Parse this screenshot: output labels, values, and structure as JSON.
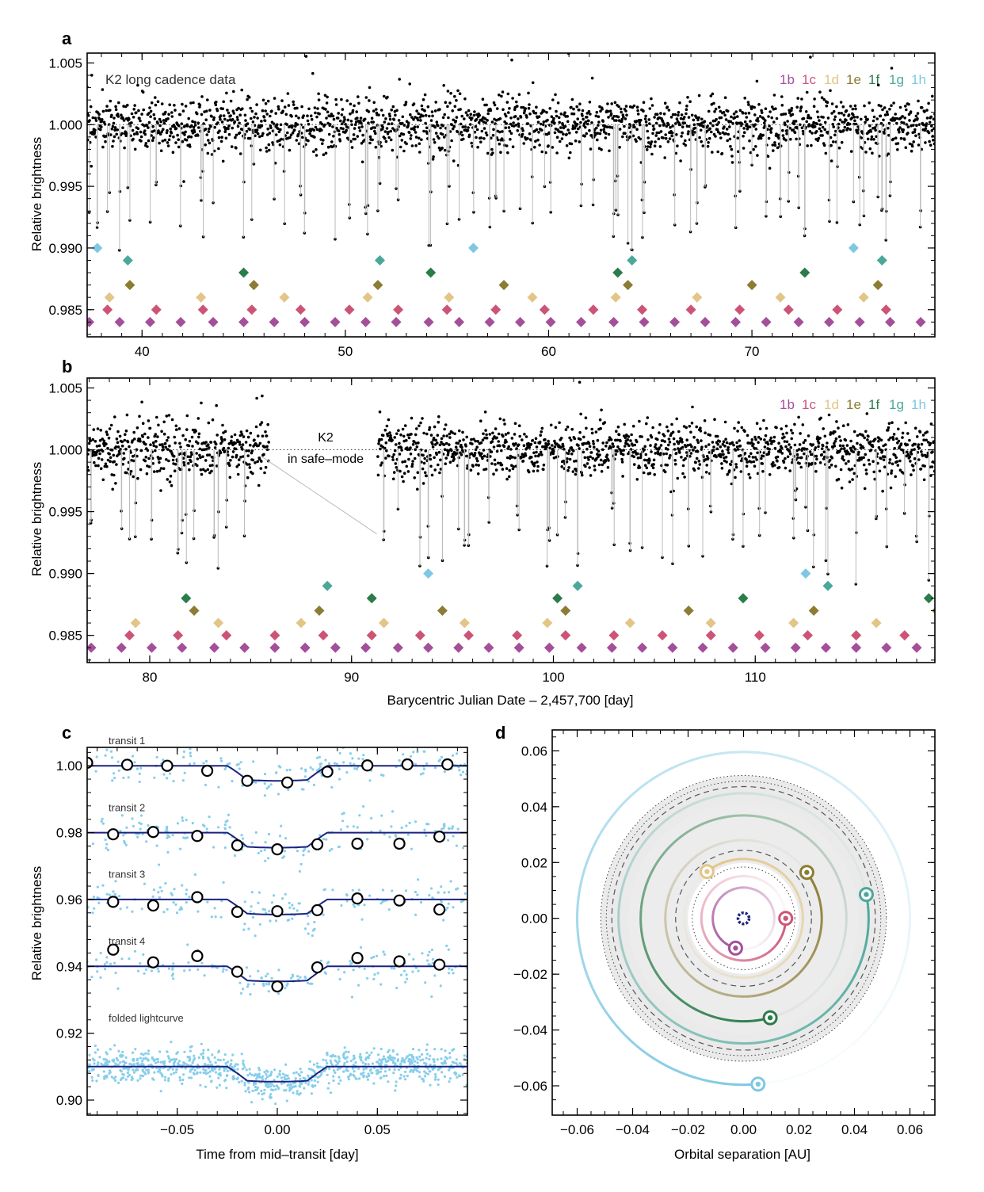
{
  "figure": {
    "panel_letters": [
      "a",
      "b",
      "c",
      "d"
    ],
    "planet_names": [
      "1b",
      "1c",
      "1d",
      "1e",
      "1f",
      "1g",
      "1h"
    ],
    "planet_colors": [
      "#a44f9a",
      "#cc5477",
      "#e2c587",
      "#8c7c34",
      "#2a7c49",
      "#4aa89a",
      "#7ec8e3"
    ],
    "transit_line_color": "#bbbbbb",
    "point_color": "#000000",
    "fold_point_color": "#87ceeb",
    "model_color": "#1a237e"
  },
  "chart_data": [
    {
      "id": "a",
      "type": "scatter",
      "title": "",
      "annotation": "K2 long cadence data",
      "xlabel": "",
      "ylabel": "Relative brightness",
      "xlim": [
        37.3,
        79.0
      ],
      "ylim": [
        0.9828,
        1.0058
      ],
      "xticks": [
        40,
        50,
        60,
        70
      ],
      "xtick_labels": [
        "40",
        "50",
        "60",
        "70"
      ],
      "yticks": [
        0.985,
        0.99,
        0.995,
        1.0,
        1.005
      ],
      "ytick_labels": [
        "0.985",
        "0.990",
        "0.995",
        "1.000",
        "1.005"
      ],
      "legend": [
        "1b",
        "1c",
        "1d",
        "1e",
        "1f",
        "1g",
        "1h"
      ],
      "legend_placement": "top-right",
      "transit_markers": {
        "1b": {
          "y": 0.984,
          "x": [
            37.4,
            38.9,
            40.4,
            41.9,
            43.5,
            45.0,
            46.5,
            48.0,
            49.5,
            51.0,
            52.5,
            54.1,
            55.6,
            57.1,
            58.6,
            60.1,
            61.6,
            63.2,
            64.7,
            66.2,
            67.7,
            69.2,
            70.7,
            72.3,
            73.8,
            75.3,
            76.8,
            78.3
          ]
        },
        "1c": {
          "y": 0.985,
          "x": [
            38.3,
            40.7,
            43.0,
            45.4,
            47.8,
            50.2,
            52.6,
            55.0,
            57.4,
            59.8,
            62.2,
            64.6,
            67.0,
            69.4,
            71.8,
            74.2,
            76.6
          ]
        },
        "1d": {
          "y": 0.986,
          "x": [
            38.4,
            42.9,
            47.0,
            51.1,
            55.1,
            59.2,
            63.3,
            67.3,
            71.4,
            75.5
          ]
        },
        "1e": {
          "y": 0.987,
          "x": [
            39.4,
            45.5,
            51.6,
            57.8,
            63.9,
            70.0,
            76.2
          ]
        },
        "1f": {
          "y": 0.988,
          "x": [
            45.0,
            54.2,
            63.4,
            72.6
          ]
        },
        "1g": {
          "y": 0.989,
          "x": [
            39.3,
            51.7,
            64.1,
            76.4
          ]
        },
        "1h": {
          "y": 0.99,
          "x": [
            37.8,
            56.3,
            75.0
          ]
        }
      },
      "safe_mode_gap": null
    },
    {
      "id": "b",
      "type": "scatter",
      "title": "",
      "annotation": "K2\nin safe–mode",
      "xlabel": "Barycentric Julian Date – 2,457,700 [day]",
      "ylabel": "Relative brightness",
      "xlim": [
        76.9,
        118.9
      ],
      "ylim": [
        0.9828,
        1.0058
      ],
      "xticks": [
        80,
        90,
        100,
        110
      ],
      "xtick_labels": [
        "80",
        "90",
        "100",
        "110"
      ],
      "yticks": [
        0.985,
        0.99,
        0.995,
        1.0,
        1.005
      ],
      "ytick_labels": [
        "0.985",
        "0.990",
        "0.995",
        "1.000",
        "1.005"
      ],
      "legend": [
        "1b",
        "1c",
        "1d",
        "1e",
        "1f",
        "1g",
        "1h"
      ],
      "legend_placement": "top-right",
      "transit_markers": {
        "1b": {
          "y": 0.984,
          "x": [
            77.1,
            78.6,
            80.1,
            81.6,
            83.2,
            84.7,
            86.2,
            87.7,
            89.2,
            90.7,
            92.3,
            93.8,
            95.3,
            96.8,
            98.3,
            99.8,
            101.4,
            102.9,
            104.4,
            105.9,
            107.4,
            108.9,
            110.5,
            112.0,
            113.5,
            115.0,
            116.5,
            118.0
          ]
        },
        "1c": {
          "y": 0.985,
          "x": [
            79.0,
            81.4,
            83.8,
            86.2,
            88.6,
            91.0,
            93.4,
            95.8,
            98.2,
            100.6,
            103.0,
            105.4,
            107.8,
            110.2,
            112.6,
            115.0,
            117.4
          ]
        },
        "1d": {
          "y": 0.986,
          "x": [
            79.3,
            83.4,
            87.5,
            91.6,
            95.6,
            99.7,
            103.8,
            107.8,
            111.9,
            116.0
          ]
        },
        "1e": {
          "y": 0.987,
          "x": [
            82.2,
            88.4,
            94.5,
            100.6,
            106.7,
            112.9,
            119.0
          ]
        },
        "1f": {
          "y": 0.988,
          "x": [
            81.8,
            91.0,
            100.2,
            109.4,
            118.6
          ]
        },
        "1g": {
          "y": 0.989,
          "x": [
            88.8,
            101.2,
            113.6
          ]
        },
        "1h": {
          "y": 0.99,
          "x": [
            93.8,
            112.5
          ]
        }
      },
      "safe_mode_gap": [
        85.9,
        91.3
      ]
    },
    {
      "id": "c",
      "type": "line",
      "title": "",
      "xlabel": "Time from mid–transit [day]",
      "ylabel": "Relative brightness",
      "xlim": [
        -0.095,
        0.095
      ],
      "ylim": [
        0.8955,
        1.0055
      ],
      "xticks": [
        -0.05,
        0.0,
        0.05
      ],
      "xtick_labels": [
        "−0.05",
        "0.00",
        "0.05"
      ],
      "yticks": [
        0.9,
        0.92,
        0.94,
        0.96,
        0.98,
        1.0
      ],
      "ytick_labels": [
        "0.90",
        "0.92",
        "0.94",
        "0.96",
        "0.98",
        "1.00"
      ],
      "transit_model": {
        "ingress_start": -0.025,
        "ingress_end": -0.015,
        "egress_start": 0.015,
        "egress_end": 0.025,
        "depth": 0.0045
      },
      "series": [
        {
          "name": "transit 1",
          "baseline": 1.0,
          "binned_x": [
            -0.095,
            -0.075,
            -0.055,
            -0.035,
            -0.015,
            0.005,
            0.025,
            0.045,
            0.065,
            0.085
          ],
          "binned_y": [
            1.0009,
            1.0003,
            1.0,
            0.9985,
            0.9955,
            0.995,
            0.9982,
            1.0001,
            1.0004,
            1.0004
          ]
        },
        {
          "name": "transit 2",
          "baseline": 0.98,
          "binned_x": [
            -0.082,
            -0.062,
            -0.04,
            -0.02,
            0.0,
            0.02,
            0.04,
            0.061,
            0.081
          ],
          "binned_y": [
            0.9795,
            0.9802,
            0.979,
            0.9762,
            0.975,
            0.9765,
            0.9767,
            0.9767,
            0.9788
          ]
        },
        {
          "name": "transit 3",
          "baseline": 0.96,
          "binned_x": [
            -0.082,
            -0.062,
            -0.04,
            -0.02,
            0.0,
            0.02,
            0.04,
            0.061,
            0.081
          ],
          "binned_y": [
            0.9593,
            0.9582,
            0.9607,
            0.9563,
            0.9565,
            0.9568,
            0.9603,
            0.9597,
            0.957
          ]
        },
        {
          "name": "transit 4",
          "baseline": 0.94,
          "binned_x": [
            -0.082,
            -0.062,
            -0.04,
            -0.02,
            0.0,
            0.02,
            0.04,
            0.061,
            0.081
          ],
          "binned_y": [
            0.945,
            0.9412,
            0.9431,
            0.9384,
            0.934,
            0.9397,
            0.9425,
            0.9415,
            0.9405
          ]
        },
        {
          "name": "folded lightcurve",
          "baseline": 0.91,
          "binned_x": [],
          "binned_y": []
        }
      ]
    },
    {
      "id": "d",
      "type": "scatter",
      "title": "",
      "xlabel": "Orbital separation [AU]",
      "ylabel": "",
      "xlim": [
        -0.069,
        0.069
      ],
      "ylim": [
        -0.0705,
        0.0675
      ],
      "xticks": [
        -0.06,
        -0.04,
        -0.02,
        0.0,
        0.02,
        0.04,
        0.06
      ],
      "xtick_labels": [
        "−0.06",
        "−0.04",
        "−0.02",
        "0.00",
        "0.02",
        "0.04",
        "0.06"
      ],
      "yticks": [
        -0.06,
        -0.04,
        -0.02,
        0.0,
        0.02,
        0.04,
        0.06
      ],
      "ytick_labels": [
        "−0.06",
        "−0.04",
        "−0.02",
        "0.00",
        "0.02",
        "0.04",
        "0.06"
      ],
      "habitable_zone": {
        "inner": 0.0435,
        "outer": 0.0515
      },
      "dotted_circles": [
        0.0185,
        0.0495,
        0.0515
      ],
      "dashed_circles": [
        0.0245,
        0.0475
      ],
      "orbits": [
        {
          "name": "1b",
          "a": 0.0111,
          "planet_angle": 255
        },
        {
          "name": "1c",
          "a": 0.0152,
          "planet_angle": 0
        },
        {
          "name": "1d",
          "a": 0.0214,
          "planet_angle": 128
        },
        {
          "name": "1e",
          "a": 0.0282,
          "planet_angle": 36
        },
        {
          "name": "1f",
          "a": 0.0371,
          "planet_angle": 285
        },
        {
          "name": "1g",
          "a": 0.0451,
          "planet_angle": 11
        },
        {
          "name": "1h",
          "a": 0.06,
          "planet_angle": 275
        }
      ]
    }
  ]
}
